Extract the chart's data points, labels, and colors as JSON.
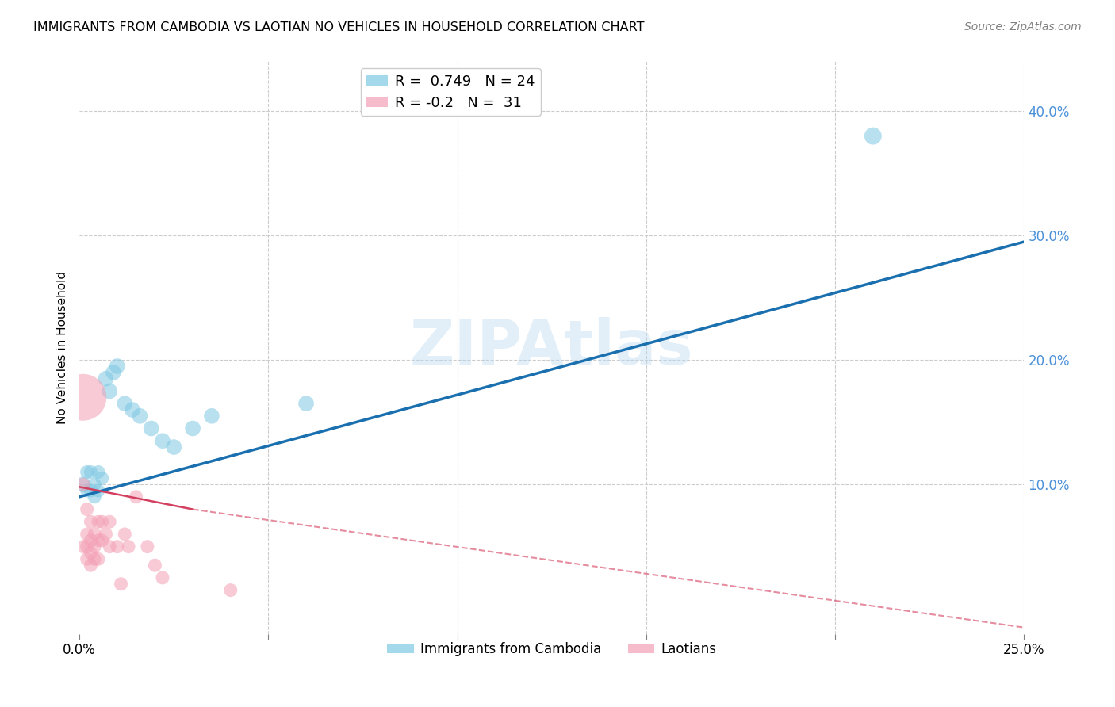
{
  "title": "IMMIGRANTS FROM CAMBODIA VS LAOTIAN NO VEHICLES IN HOUSEHOLD CORRELATION CHART",
  "source": "Source: ZipAtlas.com",
  "ylabel": "No Vehicles in Household",
  "xlim": [
    0.0,
    0.25
  ],
  "ylim": [
    -0.02,
    0.44
  ],
  "xticks": [
    0.0,
    0.05,
    0.1,
    0.15,
    0.2,
    0.25
  ],
  "xticklabels": [
    "0.0%",
    "",
    "",
    "",
    "",
    "25.0%"
  ],
  "yticks": [
    0.0,
    0.1,
    0.2,
    0.3,
    0.4
  ],
  "yticklabels": [
    "",
    "10.0%",
    "20.0%",
    "30.0%",
    "40.0%"
  ],
  "r_cambodia": 0.749,
  "n_cambodia": 24,
  "r_laotian": -0.2,
  "n_laotian": 31,
  "legend_label1": "Immigrants from Cambodia",
  "legend_label2": "Laotians",
  "watermark": "ZIPAtlas",
  "watermark_color": "#b8d8f0",
  "background_color": "#ffffff",
  "grid_color": "#cccccc",
  "blue_color": "#7ec8e3",
  "pink_color": "#f4a0b5",
  "blue_line_color": "#1a6faf",
  "pink_line_color": "#d44060",
  "blue_tick_color": "#4a90d9",
  "cambodia_x": [
    0.001,
    0.002,
    0.002,
    0.003,
    0.003,
    0.004,
    0.004,
    0.005,
    0.005,
    0.006,
    0.007,
    0.008,
    0.009,
    0.01,
    0.012,
    0.014,
    0.016,
    0.019,
    0.022,
    0.025,
    0.03,
    0.035,
    0.06,
    0.21
  ],
  "cambodia_y": [
    0.1,
    0.095,
    0.11,
    0.095,
    0.11,
    0.09,
    0.1,
    0.095,
    0.11,
    0.105,
    0.185,
    0.175,
    0.19,
    0.195,
    0.165,
    0.16,
    0.155,
    0.145,
    0.135,
    0.13,
    0.145,
    0.155,
    0.165,
    0.38
  ],
  "cambodia_sizes": [
    200,
    150,
    150,
    150,
    150,
    150,
    150,
    150,
    150,
    150,
    200,
    200,
    200,
    200,
    200,
    200,
    200,
    200,
    200,
    200,
    200,
    200,
    200,
    250
  ],
  "laotian_x": [
    0.001,
    0.001,
    0.001,
    0.002,
    0.002,
    0.002,
    0.002,
    0.003,
    0.003,
    0.003,
    0.003,
    0.004,
    0.004,
    0.004,
    0.005,
    0.005,
    0.005,
    0.006,
    0.006,
    0.007,
    0.008,
    0.008,
    0.01,
    0.011,
    0.012,
    0.013,
    0.015,
    0.018,
    0.02,
    0.022,
    0.04
  ],
  "laotian_y": [
    0.17,
    0.1,
    0.05,
    0.08,
    0.06,
    0.05,
    0.04,
    0.07,
    0.055,
    0.045,
    0.035,
    0.06,
    0.05,
    0.04,
    0.07,
    0.055,
    0.04,
    0.07,
    0.055,
    0.06,
    0.07,
    0.05,
    0.05,
    0.02,
    0.06,
    0.05,
    0.09,
    0.05,
    0.035,
    0.025,
    0.015
  ],
  "laotian_sizes": [
    1800,
    150,
    150,
    150,
    150,
    150,
    150,
    150,
    150,
    150,
    150,
    150,
    150,
    150,
    150,
    150,
    150,
    150,
    150,
    150,
    150,
    150,
    150,
    150,
    150,
    150,
    150,
    150,
    150,
    150,
    150
  ],
  "blue_line_x0": 0.0,
  "blue_line_y0": 0.09,
  "blue_line_x1": 0.25,
  "blue_line_y1": 0.295,
  "pink_line_x0": 0.0,
  "pink_line_y0": 0.098,
  "pink_line_x1_solid": 0.03,
  "pink_line_y1_solid": 0.08,
  "pink_line_x1_dash": 0.25,
  "pink_line_y1_dash": -0.015
}
